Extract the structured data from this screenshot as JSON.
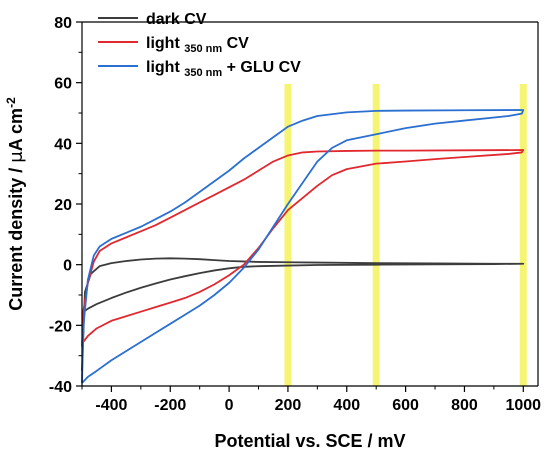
{
  "chart_data": {
    "type": "line",
    "xlabel": "Potential vs. SCE / mV",
    "ylabel_main": "Current density / ",
    "ylabel_mu": "μ",
    "ylabel_unit": "A cm",
    "ylabel_exp": "-2",
    "xlim": [
      -500,
      1050
    ],
    "ylim": [
      -40,
      80
    ],
    "xticks": [
      -400,
      -200,
      0,
      200,
      400,
      600,
      800,
      1000
    ],
    "yticks": [
      -40,
      -20,
      0,
      20,
      40,
      60,
      80
    ],
    "x_tick_labels": [
      "-400",
      "-200",
      "0",
      "200",
      "400",
      "600",
      "800",
      "1000"
    ],
    "y_tick_labels": [
      "-40",
      "-20",
      "0",
      "20",
      "40",
      "60",
      "80"
    ],
    "highlight_bands": [
      {
        "center": 200,
        "color": "#f4f35a"
      },
      {
        "center": 500,
        "color": "#f4f35a"
      },
      {
        "center": 1000,
        "color": "#f4f35a"
      }
    ],
    "legend_position": "top-left",
    "series": [
      {
        "name": "dark CV",
        "legend_main": "dark CV",
        "legend_sub": "",
        "legend_after": "",
        "color": "#3c3c3c",
        "forward": [
          [
            -500,
            -35
          ],
          [
            -490,
            -9
          ],
          [
            -470,
            -3
          ],
          [
            -440,
            -0.5
          ],
          [
            -400,
            0.5
          ],
          [
            -350,
            1.2
          ],
          [
            -300,
            1.7
          ],
          [
            -250,
            2.0
          ],
          [
            -200,
            2.1
          ],
          [
            -150,
            2.0
          ],
          [
            -100,
            1.8
          ],
          [
            -50,
            1.5
          ],
          [
            0,
            1.2
          ],
          [
            100,
            0.9
          ],
          [
            200,
            0.8
          ],
          [
            300,
            0.7
          ],
          [
            500,
            0.5
          ],
          [
            700,
            0.4
          ],
          [
            900,
            0.3
          ],
          [
            1000,
            0.3
          ]
        ],
        "reverse": [
          [
            1000,
            0.3
          ],
          [
            900,
            0.2
          ],
          [
            700,
            0.1
          ],
          [
            500,
            0.0
          ],
          [
            300,
            -0.1
          ],
          [
            200,
            -0.3
          ],
          [
            100,
            -0.5
          ],
          [
            50,
            -0.7
          ],
          [
            0,
            -1.2
          ],
          [
            -50,
            -1.9
          ],
          [
            -100,
            -2.8
          ],
          [
            -150,
            -3.8
          ],
          [
            -200,
            -4.9
          ],
          [
            -250,
            -6.2
          ],
          [
            -300,
            -7.6
          ],
          [
            -350,
            -9.2
          ],
          [
            -400,
            -11
          ],
          [
            -450,
            -13
          ],
          [
            -480,
            -14.5
          ],
          [
            -500,
            -16
          ]
        ]
      },
      {
        "name": "light 350 nm CV",
        "legend_main": "light ",
        "legend_sub": "350 nm",
        "legend_after": " CV",
        "color": "#e0282e",
        "forward": [
          [
            -500,
            -27
          ],
          [
            -495,
            -15
          ],
          [
            -480,
            -6
          ],
          [
            -460,
            1
          ],
          [
            -440,
            4.5
          ],
          [
            -400,
            7
          ],
          [
            -350,
            9
          ],
          [
            -300,
            11
          ],
          [
            -250,
            13
          ],
          [
            -200,
            15.5
          ],
          [
            -150,
            18
          ],
          [
            -100,
            20.5
          ],
          [
            -50,
            23
          ],
          [
            0,
            25.5
          ],
          [
            50,
            28
          ],
          [
            100,
            31
          ],
          [
            150,
            34
          ],
          [
            200,
            36
          ],
          [
            250,
            37
          ],
          [
            300,
            37.3
          ],
          [
            400,
            37.5
          ],
          [
            500,
            37.6
          ],
          [
            600,
            37.6
          ],
          [
            800,
            37.7
          ],
          [
            1000,
            37.8
          ]
        ],
        "reverse": [
          [
            1000,
            37.8
          ],
          [
            995,
            37
          ],
          [
            950,
            36.5
          ],
          [
            800,
            35.5
          ],
          [
            700,
            34.8
          ],
          [
            600,
            34
          ],
          [
            500,
            33.3
          ],
          [
            400,
            31.5
          ],
          [
            350,
            29.5
          ],
          [
            300,
            26
          ],
          [
            250,
            22
          ],
          [
            200,
            18
          ],
          [
            150,
            12
          ],
          [
            100,
            5.5
          ],
          [
            50,
            0
          ],
          [
            0,
            -3.5
          ],
          [
            -50,
            -6.5
          ],
          [
            -100,
            -9
          ],
          [
            -150,
            -11
          ],
          [
            -200,
            -12.5
          ],
          [
            -250,
            -14
          ],
          [
            -300,
            -15.5
          ],
          [
            -350,
            -17
          ],
          [
            -400,
            -18.5
          ],
          [
            -450,
            -21
          ],
          [
            -480,
            -23.5
          ],
          [
            -500,
            -26
          ]
        ]
      },
      {
        "name": "light 350 nm + GLU CV",
        "legend_main": "light ",
        "legend_sub": "350 nm",
        "legend_after": " + GLU CV",
        "color": "#2a6fd1",
        "forward": [
          [
            -500,
            -39
          ],
          [
            -495,
            -20
          ],
          [
            -480,
            -5
          ],
          [
            -460,
            3
          ],
          [
            -440,
            6
          ],
          [
            -400,
            8.5
          ],
          [
            -350,
            10.5
          ],
          [
            -300,
            12.5
          ],
          [
            -250,
            15
          ],
          [
            -200,
            17.5
          ],
          [
            -150,
            20.5
          ],
          [
            -100,
            24
          ],
          [
            -50,
            27.5
          ],
          [
            0,
            31
          ],
          [
            50,
            35
          ],
          [
            100,
            38.5
          ],
          [
            150,
            42
          ],
          [
            200,
            45.5
          ],
          [
            250,
            47.5
          ],
          [
            300,
            49
          ],
          [
            400,
            50.2
          ],
          [
            500,
            50.7
          ],
          [
            600,
            50.8
          ],
          [
            800,
            50.9
          ],
          [
            1000,
            51
          ]
        ],
        "reverse": [
          [
            1000,
            51
          ],
          [
            995,
            49.8
          ],
          [
            950,
            49
          ],
          [
            800,
            47.5
          ],
          [
            700,
            46.5
          ],
          [
            600,
            45
          ],
          [
            500,
            43
          ],
          [
            400,
            41
          ],
          [
            350,
            38.5
          ],
          [
            300,
            34
          ],
          [
            250,
            27
          ],
          [
            200,
            20
          ],
          [
            150,
            12.5
          ],
          [
            100,
            5
          ],
          [
            50,
            -1
          ],
          [
            0,
            -6
          ],
          [
            -50,
            -10
          ],
          [
            -100,
            -13.5
          ],
          [
            -150,
            -16.5
          ],
          [
            -200,
            -19.5
          ],
          [
            -250,
            -22.5
          ],
          [
            -300,
            -25.5
          ],
          [
            -350,
            -28.5
          ],
          [
            -400,
            -31.5
          ],
          [
            -450,
            -35
          ],
          [
            -480,
            -37
          ],
          [
            -500,
            -39
          ]
        ]
      }
    ]
  }
}
